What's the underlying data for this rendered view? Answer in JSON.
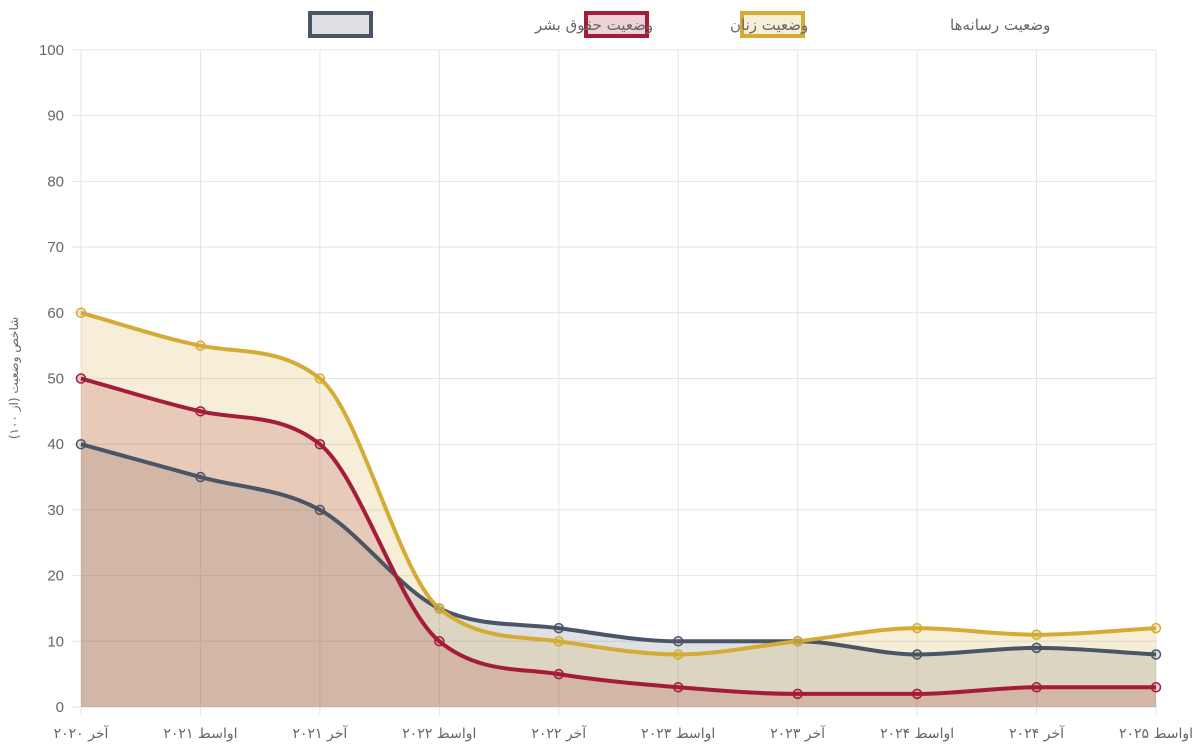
{
  "chart_data": {
    "type": "area",
    "title": "",
    "xlabel": "",
    "ylabel": "شاخص وضعیت (از ۱۰۰)",
    "ylim": [
      0,
      100
    ],
    "yticks": [
      "0",
      "10",
      "20",
      "30",
      "40",
      "50",
      "60",
      "70",
      "80",
      "90",
      "100"
    ],
    "ytick_values": [
      0,
      10,
      20,
      30,
      40,
      50,
      60,
      70,
      80,
      90,
      100
    ],
    "grid": true,
    "legend_position": "top-center",
    "categories": [
      "آخر ۲۰۲۰",
      "اواسط ۲۰۲۱",
      "آخر ۲۰۲۱",
      "اواسط ۲۰۲۲",
      "آخر ۲۰۲۲",
      "اواسط ۲۰۲۳",
      "آخر ۲۰۲۳",
      "اواسط ۲۰۲۴",
      "آخر ۲۰۲۴",
      "اواسط ۲۰۲۵"
    ],
    "series": [
      {
        "name": "وضعیت حقوق بشر",
        "color": "#4a5568",
        "fill": "rgba(74,85,104,0.18)",
        "values": [
          40,
          35,
          30,
          15,
          12,
          10,
          10,
          8,
          9,
          8
        ]
      },
      {
        "name": "وضعیت زنان",
        "color": "#a51c3a",
        "fill": "rgba(165,28,58,0.20)",
        "values": [
          50,
          45,
          40,
          10,
          5,
          3,
          2,
          2,
          3,
          3
        ]
      },
      {
        "name": "وضعیت رسانه‌ها",
        "color": "#d4ac35",
        "fill": "rgba(212,172,53,0.20)",
        "values": [
          60,
          55,
          50,
          15,
          10,
          8,
          10,
          12,
          11,
          12
        ]
      }
    ]
  }
}
